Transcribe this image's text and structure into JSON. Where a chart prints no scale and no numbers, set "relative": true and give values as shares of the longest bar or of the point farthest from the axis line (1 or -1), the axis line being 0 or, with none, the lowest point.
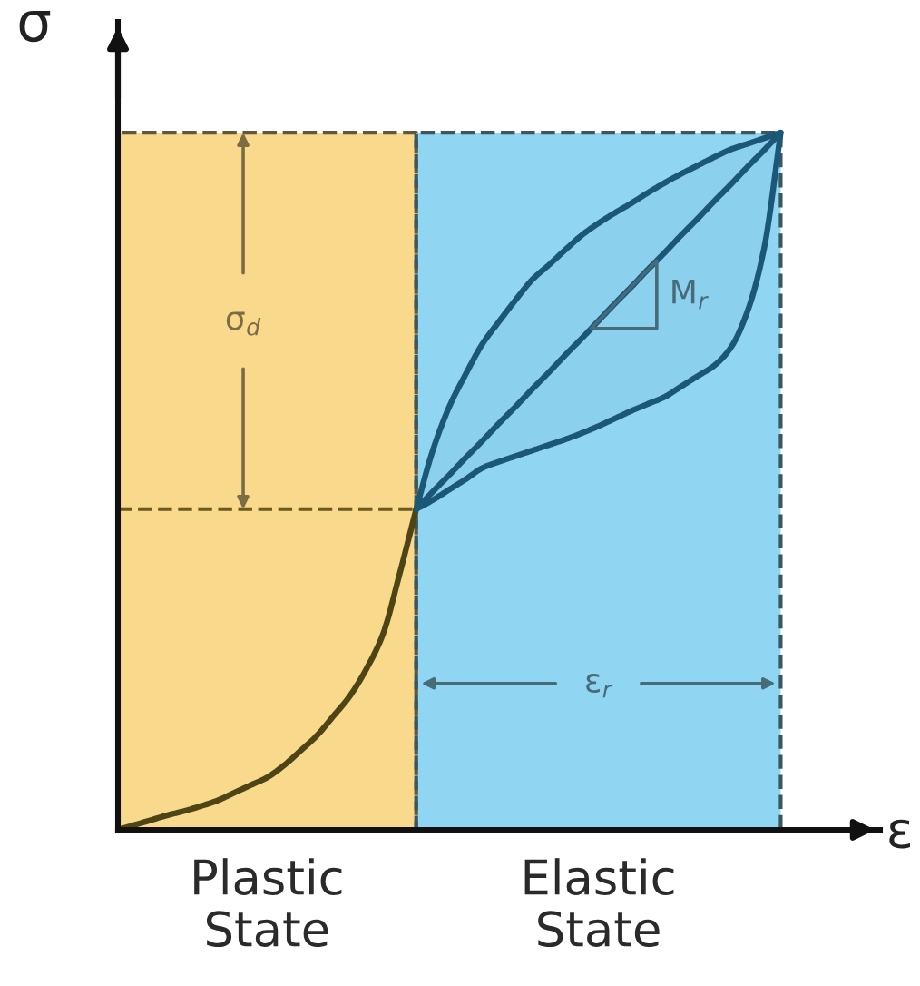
{
  "chart_data": {
    "type": "line",
    "relative": true,
    "xlabel": "ε",
    "ylabel": "σ",
    "line_style": "solid",
    "categories": [
      null,
      null,
      null,
      null,
      null,
      null,
      null,
      null,
      null,
      null,
      null,
      null,
      null,
      null,
      null,
      null,
      null,
      null,
      null,
      null,
      null,
      null,
      null,
      null,
      null,
      null,
      null,
      null,
      null,
      null,
      null,
      null,
      null,
      null,
      null,
      null,
      null,
      null,
      null,
      null,
      null
    ],
    "series": [
      {
        "type": "area",
        "name": "Plastic\nState",
        "color": "#f9d98b",
        "line_style": "dashed",
        "values": [
          1,
          1,
          1,
          1,
          1,
          1,
          1,
          1,
          1,
          1,
          1,
          1,
          1,
          1,
          1,
          1,
          1,
          1,
          1,
          null,
          null,
          null,
          null,
          null,
          null,
          null,
          null,
          null,
          null,
          null,
          null,
          null,
          null,
          null,
          null,
          null,
          null,
          null,
          null,
          null,
          null
        ]
      },
      {
        "type": "area",
        "name": "Elastic\nState",
        "color": "#90d6f2",
        "line_style": "dashed",
        "values": [
          null,
          null,
          null,
          null,
          null,
          null,
          null,
          null,
          null,
          null,
          null,
          null,
          null,
          null,
          null,
          null,
          null,
          null,
          1,
          1,
          1,
          1,
          1,
          1,
          1,
          1,
          1,
          1,
          1,
          1,
          1,
          1,
          1,
          1,
          1,
          1,
          1,
          1,
          1,
          1,
          1
        ]
      },
      {
        "color": "#4f4416",
        "values": [
          0,
          0.007,
          0.014,
          0.021,
          0.027,
          0.034,
          0.042,
          0.053,
          0.064,
          0.075,
          0.092,
          0.113,
          0.135,
          0.163,
          0.192,
          0.231,
          0.281,
          0.367,
          0.46,
          null,
          null,
          null,
          null,
          null,
          null,
          null,
          null,
          null,
          null,
          null,
          null,
          null,
          null,
          null,
          null,
          null,
          null,
          null,
          null,
          null,
          null
        ]
      },
      {
        "color": "#1b5777",
        "values": [
          null,
          null,
          null,
          null,
          null,
          null,
          null,
          null,
          null,
          null,
          null,
          null,
          null,
          null,
          null,
          null,
          null,
          null,
          0.46,
          0.485,
          0.509,
          0.534,
          0.558,
          0.583,
          0.607,
          0.632,
          0.656,
          0.681,
          0.705,
          0.73,
          0.755,
          0.779,
          0.804,
          0.828,
          0.853,
          0.877,
          0.902,
          0.926,
          0.951,
          0.975,
          1
        ],
        "upper": [
          null,
          null,
          null,
          null,
          null,
          null,
          null,
          null,
          null,
          null,
          null,
          null,
          null,
          null,
          null,
          null,
          null,
          null,
          0.46,
          0.544,
          0.607,
          0.654,
          0.697,
          0.729,
          0.76,
          0.789,
          0.81,
          0.832,
          0.853,
          0.87,
          0.885,
          0.899,
          0.914,
          0.928,
          0.941,
          0.953,
          0.965,
          0.976,
          0.984,
          0.992,
          1
        ],
        "lower": [
          null,
          null,
          null,
          null,
          null,
          null,
          null,
          null,
          null,
          null,
          null,
          null,
          null,
          null,
          null,
          null,
          null,
          null,
          0.46,
          0.473,
          0.488,
          0.503,
          0.519,
          0.528,
          0.536,
          0.544,
          0.552,
          0.56,
          0.569,
          0.579,
          0.59,
          0.601,
          0.611,
          0.621,
          0.636,
          0.651,
          0.666,
          0.692,
          0.744,
          0.834,
          1
        ]
      }
    ],
    "ref_lines": [
      {
        "axis": "y",
        "value": 0.46,
        "color": "#6b5a1e",
        "line_style": "dashed"
      }
    ],
    "annotations": [
      "σ$_{d}$",
      "M$_{r}$",
      "ε$_{r}$"
    ]
  }
}
